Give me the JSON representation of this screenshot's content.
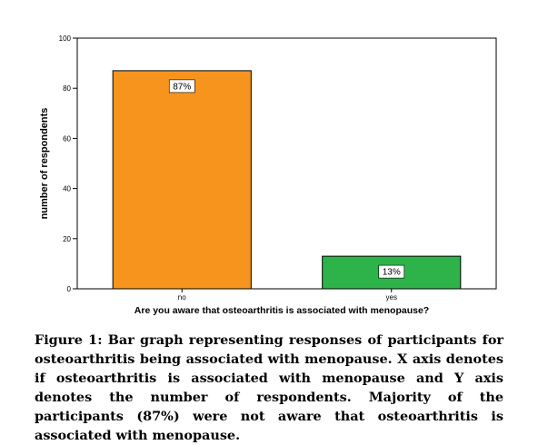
{
  "chart_data": {
    "type": "bar",
    "categories": [
      "no",
      "yes"
    ],
    "values": [
      87,
      13
    ],
    "data_labels": [
      "87%",
      "13%"
    ],
    "bar_colors": [
      "#F7941D",
      "#2DB34A"
    ],
    "xlabel": "Are you aware that osteoarthritis is associated with menopause?",
    "ylabel": "number of respondents",
    "ylim": [
      0,
      100
    ],
    "yticks": [
      "0",
      "20",
      "40",
      "60",
      "80",
      "100"
    ],
    "grid": false
  },
  "caption": "Figure 1: Bar graph representing responses of participants for osteoarthritis being associated with menopause. X axis denotes if osteoarthritis is associated with menopause and Y axis denotes the number of respondents. Majority of the participants (87%) were not aware that osteoarthritis is associated with menopause."
}
